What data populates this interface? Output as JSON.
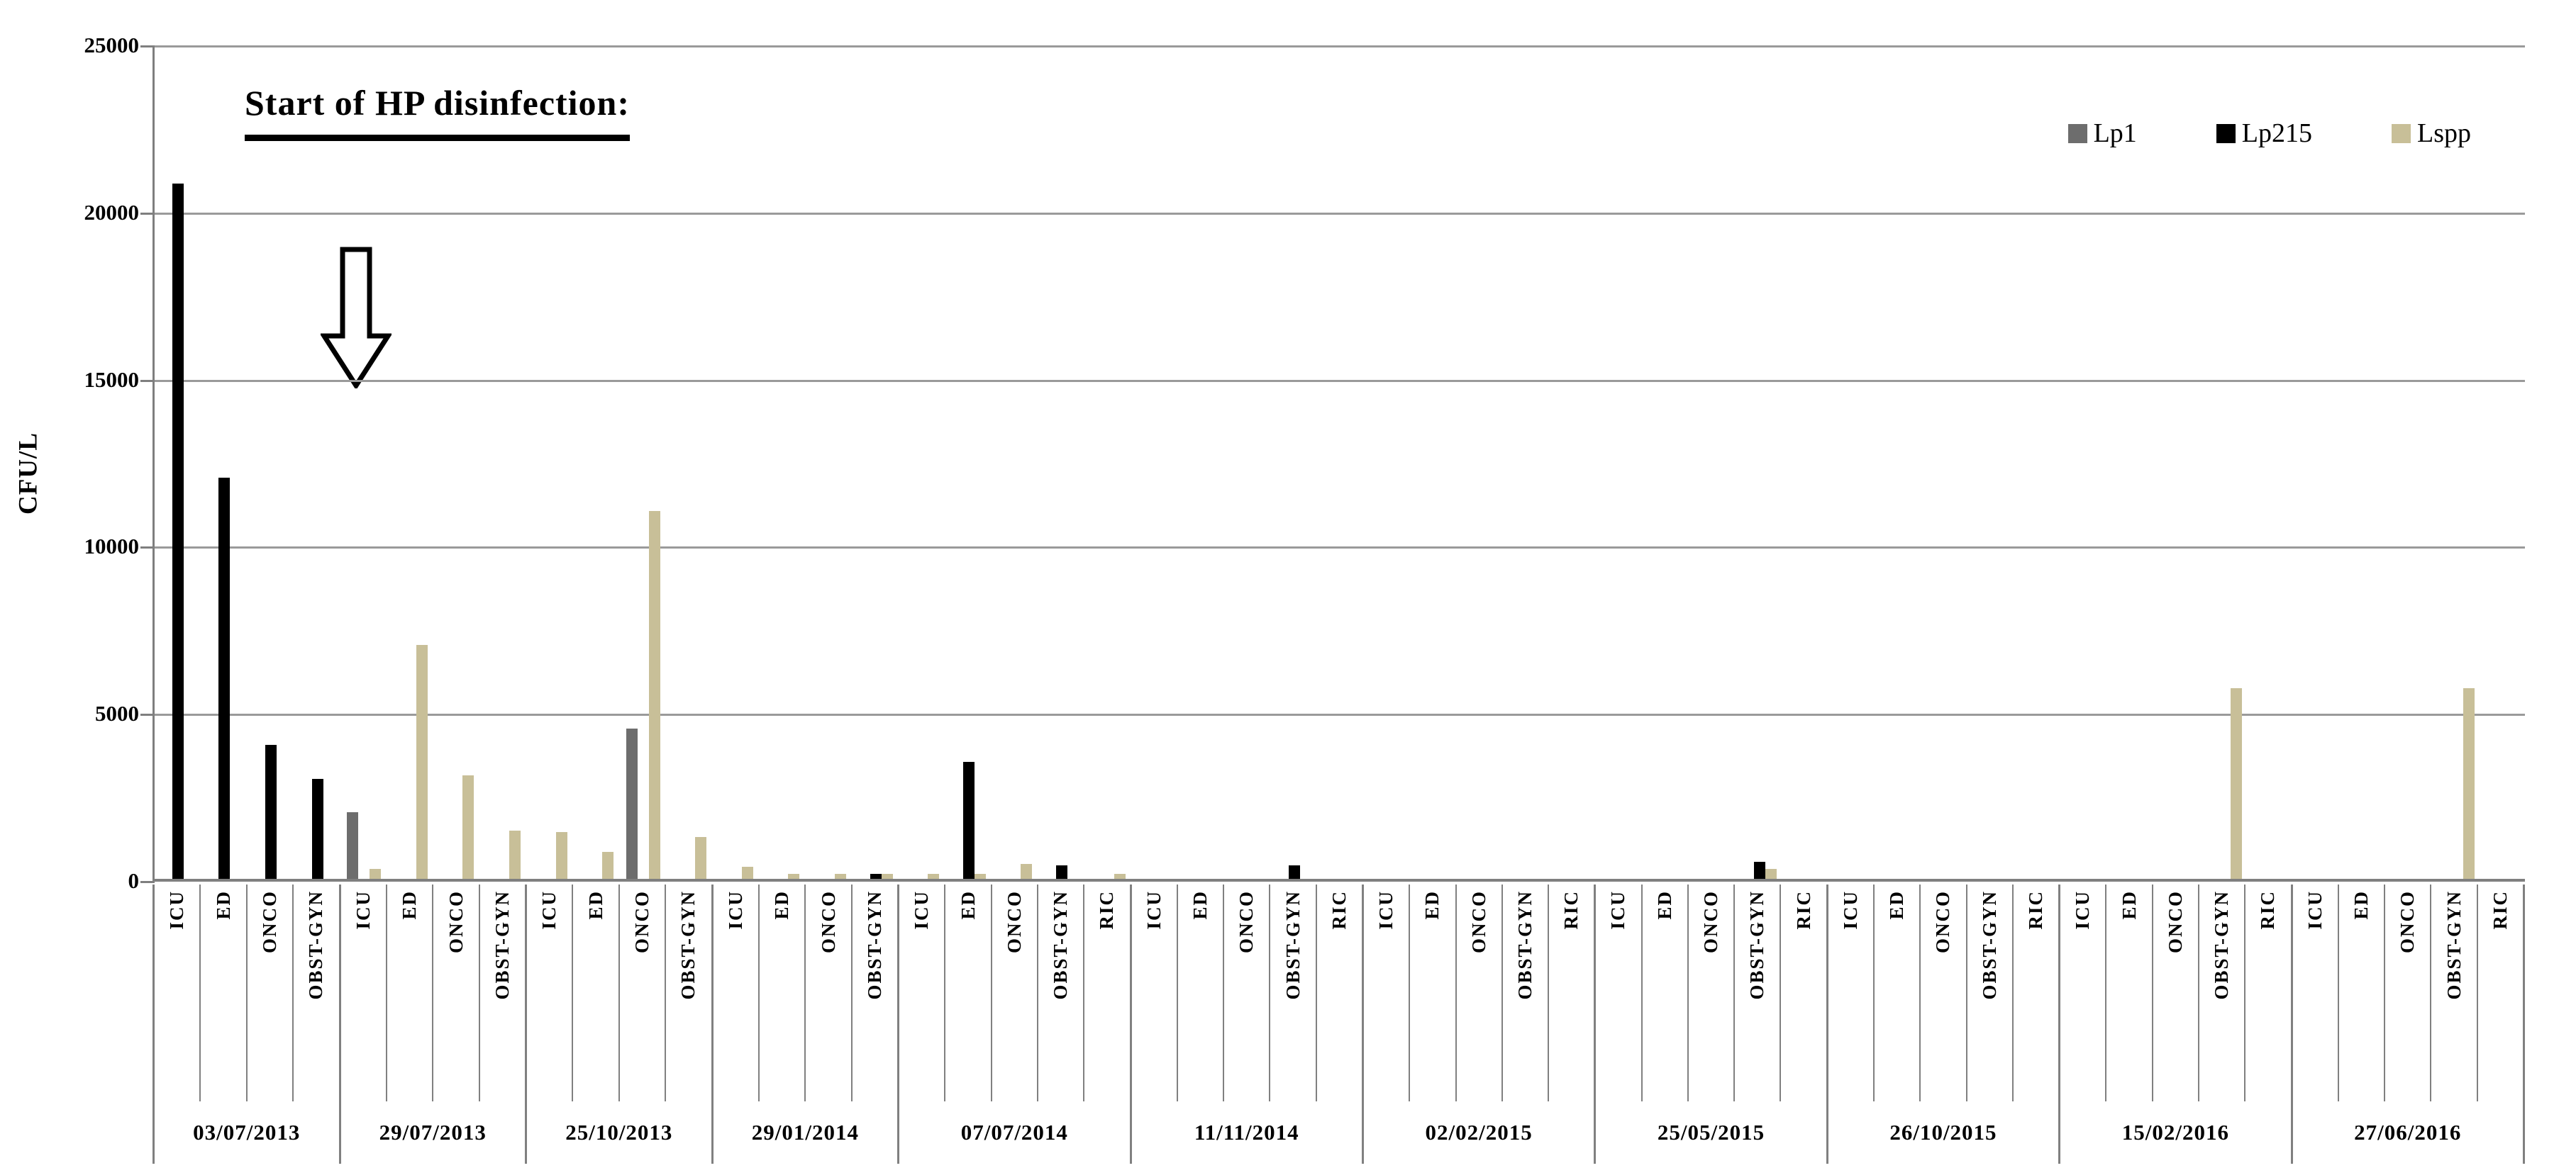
{
  "figure": {
    "annotation_title": "Start of HP disinfection:",
    "y_axis_title": "CFU/L",
    "arrow_icon": "hollow-down-arrow"
  },
  "chart_data": {
    "type": "bar",
    "title": "Start of HP disinfection:",
    "xlabel": "",
    "ylabel": "CFU/L",
    "ylim": [
      0,
      25000
    ],
    "yticks": [
      0,
      5000,
      10000,
      15000,
      20000,
      25000
    ],
    "grid": true,
    "legend_position": "top-right",
    "annotation": {
      "text": "Start of HP disinfection:",
      "arrow": "hollow down arrow pointing at baseline between 03/07/2013 and 29/07/2013 groups"
    },
    "series": [
      {
        "name": "Lp1",
        "color": "#6d6d6d"
      },
      {
        "name": "Lp215",
        "color": "#000000"
      },
      {
        "name": "Lspp",
        "color": "#c8bf98"
      }
    ],
    "groups": [
      {
        "date": "03/07/2013",
        "wards": [
          "ICU",
          "ED",
          "ONCO",
          "OBST-GYN"
        ],
        "values": {
          "Lp1": [
            0,
            0,
            0,
            0
          ],
          "Lp215": [
            20800,
            12000,
            4000,
            3000
          ],
          "Lspp": [
            0,
            0,
            0,
            0
          ]
        }
      },
      {
        "date": "29/07/2013",
        "wards": [
          "ICU",
          "ED",
          "ONCO",
          "OBST-GYN"
        ],
        "values": {
          "Lp1": [
            2000,
            0,
            0,
            0
          ],
          "Lp215": [
            0,
            0,
            0,
            0
          ],
          "Lspp": [
            300,
            7000,
            3100,
            1450
          ]
        }
      },
      {
        "date": "25/10/2013",
        "wards": [
          "ICU",
          "ED",
          "ONCO",
          "OBST-GYN"
        ],
        "values": {
          "Lp1": [
            0,
            0,
            4500,
            0
          ],
          "Lp215": [
            0,
            0,
            0,
            0
          ],
          "Lspp": [
            1400,
            800,
            11000,
            1250
          ]
        }
      },
      {
        "date": "29/01/2014",
        "wards": [
          "ICU",
          "ED",
          "ONCO",
          "OBST-GYN"
        ],
        "values": {
          "Lp1": [
            0,
            0,
            0,
            0
          ],
          "Lp215": [
            0,
            0,
            0,
            150
          ],
          "Lspp": [
            350,
            150,
            150,
            150
          ]
        }
      },
      {
        "date": "07/07/2014",
        "wards": [
          "ICU",
          "ED",
          "ONCO",
          "OBST-GYN",
          "RIC"
        ],
        "values": {
          "Lp1": [
            0,
            0,
            0,
            0,
            0
          ],
          "Lp215": [
            0,
            3500,
            0,
            400,
            0
          ],
          "Lspp": [
            150,
            150,
            450,
            0,
            150
          ]
        }
      },
      {
        "date": "11/11/2014",
        "wards": [
          "ICU",
          "ED",
          "ONCO",
          "OBST-GYN",
          "RIC"
        ],
        "values": {
          "Lp1": [
            0,
            0,
            0,
            0,
            0
          ],
          "Lp215": [
            0,
            0,
            0,
            400,
            0
          ],
          "Lspp": [
            0,
            0,
            0,
            0,
            0
          ]
        }
      },
      {
        "date": "02/02/2015",
        "wards": [
          "ICU",
          "ED",
          "ONCO",
          "OBST-GYN",
          "RIC"
        ],
        "values": {
          "Lp1": [
            0,
            0,
            0,
            0,
            0
          ],
          "Lp215": [
            0,
            0,
            0,
            0,
            0
          ],
          "Lspp": [
            0,
            0,
            0,
            0,
            0
          ]
        }
      },
      {
        "date": "25/05/2015",
        "wards": [
          "ICU",
          "ED",
          "ONCO",
          "OBST-GYN",
          "RIC"
        ],
        "values": {
          "Lp1": [
            0,
            0,
            0,
            0,
            0
          ],
          "Lp215": [
            0,
            0,
            0,
            500,
            0
          ],
          "Lspp": [
            0,
            0,
            0,
            300,
            0
          ]
        }
      },
      {
        "date": "26/10/2015",
        "wards": [
          "ICU",
          "ED",
          "ONCO",
          "OBST-GYN",
          "RIC"
        ],
        "values": {
          "Lp1": [
            0,
            0,
            0,
            0,
            0
          ],
          "Lp215": [
            0,
            0,
            0,
            0,
            0
          ],
          "Lspp": [
            0,
            0,
            0,
            0,
            0
          ]
        }
      },
      {
        "date": "15/02/2016",
        "wards": [
          "ICU",
          "ED",
          "ONCO",
          "OBST-GYN",
          "RIC"
        ],
        "values": {
          "Lp1": [
            0,
            0,
            0,
            0,
            0
          ],
          "Lp215": [
            0,
            0,
            0,
            0,
            0
          ],
          "Lspp": [
            0,
            0,
            0,
            5700,
            0
          ]
        }
      },
      {
        "date": "27/06/2016",
        "wards": [
          "ICU",
          "ED",
          "ONCO",
          "OBST-GYN",
          "RIC"
        ],
        "values": {
          "Lp1": [
            0,
            0,
            0,
            0,
            0
          ],
          "Lp215": [
            0,
            0,
            0,
            0,
            0
          ],
          "Lspp": [
            0,
            0,
            0,
            5700,
            0
          ]
        }
      }
    ]
  }
}
